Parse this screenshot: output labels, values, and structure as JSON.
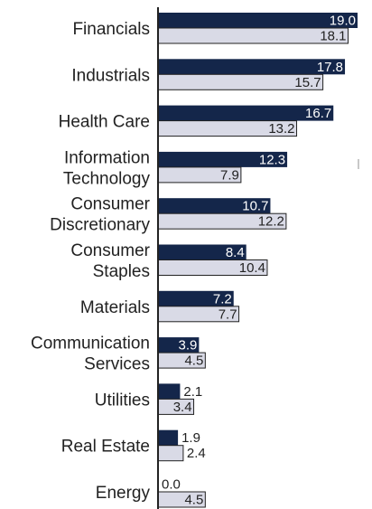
{
  "chart_data": {
    "type": "bar",
    "orientation": "horizontal",
    "categories": [
      [
        "Financials"
      ],
      [
        "Industrials"
      ],
      [
        "Health Care"
      ],
      [
        "Information",
        "Technology"
      ],
      [
        "Consumer",
        "Discretionary"
      ],
      [
        "Consumer",
        "Staples"
      ],
      [
        "Materials"
      ],
      [
        "Communication",
        "Services"
      ],
      [
        "Utilities"
      ],
      [
        "Real Estate"
      ],
      [
        "Energy"
      ]
    ],
    "series": [
      {
        "values": [
          19.0,
          17.8,
          16.7,
          12.3,
          10.7,
          8.4,
          7.2,
          3.9,
          2.1,
          1.9,
          0.0
        ],
        "labels": [
          "19.0",
          "17.8",
          "16.7",
          "12.3",
          "10.7",
          "8.4",
          "7.2",
          "3.9",
          "2.1",
          "1.9",
          "0.0"
        ],
        "color": "#14264a"
      },
      {
        "values": [
          18.1,
          15.7,
          13.2,
          7.9,
          12.2,
          10.4,
          7.7,
          4.5,
          3.4,
          2.4,
          4.5
        ],
        "labels": [
          "18.1",
          "15.7",
          "13.2",
          "7.9",
          "12.2",
          "10.4",
          "7.7",
          "4.5",
          "3.4",
          "2.4",
          "4.5"
        ],
        "color": "#d9dae6"
      }
    ],
    "xlim": [
      0,
      19.0
    ],
    "legend": "none",
    "grid": false
  }
}
